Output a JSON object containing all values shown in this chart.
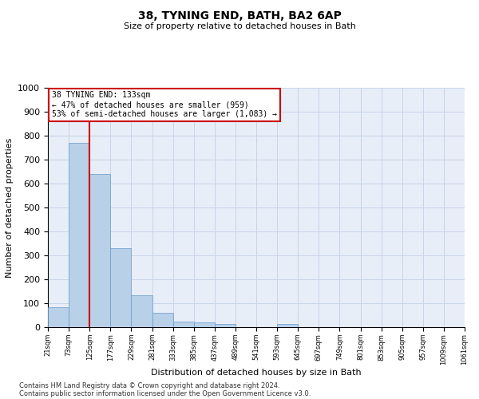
{
  "title": "38, TYNING END, BATH, BA2 6AP",
  "subtitle": "Size of property relative to detached houses in Bath",
  "xlabel": "Distribution of detached houses by size in Bath",
  "ylabel": "Number of detached properties",
  "bins": [
    "21sqm",
    "73sqm",
    "125sqm",
    "177sqm",
    "229sqm",
    "281sqm",
    "333sqm",
    "385sqm",
    "437sqm",
    "489sqm",
    "541sqm",
    "593sqm",
    "645sqm",
    "697sqm",
    "749sqm",
    "801sqm",
    "853sqm",
    "905sqm",
    "957sqm",
    "1009sqm",
    "1061sqm"
  ],
  "bar_heights": [
    83,
    770,
    640,
    330,
    135,
    60,
    25,
    20,
    13,
    0,
    0,
    13,
    0,
    0,
    0,
    0,
    0,
    0,
    0,
    0
  ],
  "bar_color": "#b8d0e8",
  "bar_edgecolor": "#6699cc",
  "vline_x": 2,
  "vline_color": "#cc0000",
  "ylim": [
    0,
    1000
  ],
  "yticks": [
    0,
    100,
    200,
    300,
    400,
    500,
    600,
    700,
    800,
    900,
    1000
  ],
  "annotation_title": "38 TYNING END: 133sqm",
  "annotation_line1": "← 47% of detached houses are smaller (959)",
  "annotation_line2": "53% of semi-detached houses are larger (1,083) →",
  "annotation_box_color": "#ffffff",
  "annotation_box_edgecolor": "#cc0000",
  "footer1": "Contains HM Land Registry data © Crown copyright and database right 2024.",
  "footer2": "Contains public sector information licensed under the Open Government Licence v3.0.",
  "bg_color": "#e8eef8",
  "grid_color": "#c8d4e8",
  "title_fontsize": 10,
  "subtitle_fontsize": 8,
  "ylabel_fontsize": 8,
  "xlabel_fontsize": 8,
  "ytick_fontsize": 8,
  "xtick_fontsize": 6
}
